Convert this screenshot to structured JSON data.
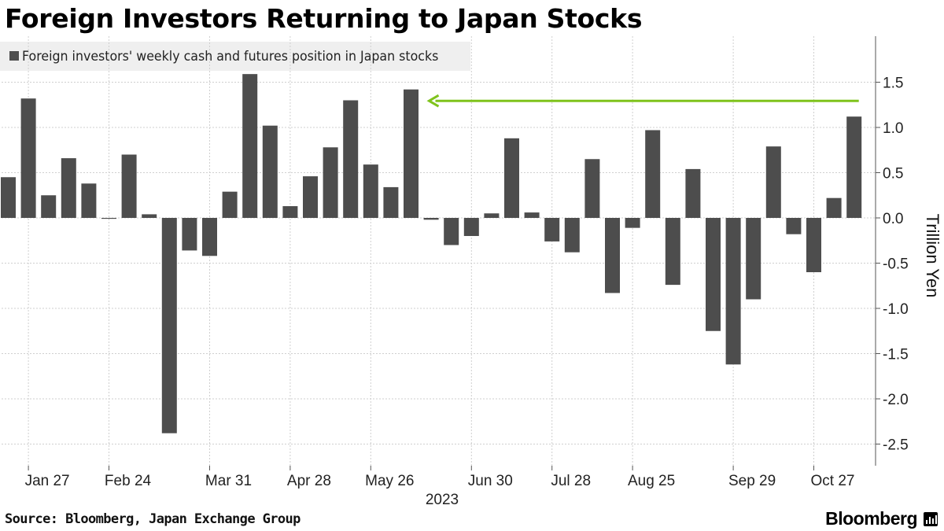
{
  "title": "Foreign Investors Returning to Japan Stocks",
  "legend": {
    "label": "Foreign investors' weekly cash and futures position in Japan stocks"
  },
  "footer": {
    "source": "Source: Bloomberg, Japan Exchange Group",
    "brand": "Bloomberg"
  },
  "colors": {
    "bar": "#4d4d4d",
    "arrow": "#7fc31c",
    "grid": "#cfcfcf",
    "axis": "#555555"
  },
  "chart_data": {
    "type": "bar",
    "title": "Foreign Investors Returning to Japan Stocks",
    "ylabel": "Trillion Yen",
    "xlabel": "2023",
    "ylim": [
      -2.75,
      1.9
    ],
    "yticks": [
      1.5,
      1.0,
      0.5,
      0.0,
      -0.5,
      -1.0,
      -1.5,
      -2.0,
      -2.5
    ],
    "ytick_labels": [
      "1.5",
      "1.0",
      "0.5",
      "0.0",
      "-0.5",
      "-1.0",
      "-1.5",
      "-2.0",
      "-2.5"
    ],
    "series": [
      {
        "name": "Foreign investors' weekly cash and futures position in Japan stocks",
        "values": [
          0.45,
          1.32,
          0.25,
          0.66,
          0.38,
          -0.01,
          0.7,
          0.04,
          -2.38,
          -0.36,
          -0.42,
          0.29,
          1.59,
          1.02,
          0.13,
          0.46,
          0.78,
          1.3,
          0.59,
          0.34,
          1.42,
          -0.02,
          -0.3,
          -0.2,
          0.05,
          0.88,
          0.06,
          -0.26,
          -0.38,
          0.65,
          -0.83,
          -0.11,
          0.97,
          -0.74,
          0.54,
          -1.25,
          -1.62,
          -0.9,
          0.79,
          -0.18,
          -0.6,
          0.22,
          1.12
        ]
      }
    ],
    "x_tick_labels": [
      {
        "label": "Jan 27",
        "index": 1
      },
      {
        "label": "Feb 24",
        "index": 5
      },
      {
        "label": "Mar 31",
        "index": 10
      },
      {
        "label": "Apr 28",
        "index": 14
      },
      {
        "label": "May 26",
        "index": 18
      },
      {
        "label": "Jun 30",
        "index": 23
      },
      {
        "label": "Jul 28",
        "index": 27
      },
      {
        "label": "Aug 25",
        "index": 31
      },
      {
        "label": "Sep 29",
        "index": 36
      },
      {
        "label": "Oct 27",
        "index": 40
      }
    ],
    "year_label": "2023",
    "annotation": {
      "type": "arrow",
      "from_index": 42,
      "to_index": 20,
      "value": 1.12
    }
  }
}
